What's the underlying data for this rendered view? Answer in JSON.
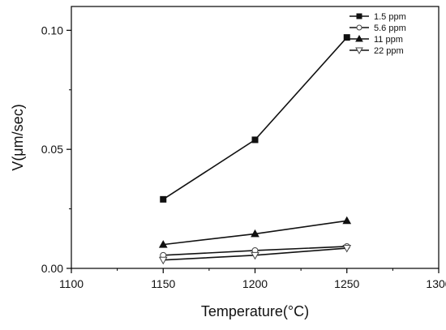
{
  "chart_data": {
    "type": "line",
    "xlabel": "Temperature(°C)",
    "ylabel": "V(μm/sec)",
    "xlim": [
      1100,
      1300
    ],
    "ylim": [
      0,
      0.11
    ],
    "x_ticks": [
      "1100",
      "1150",
      "1200",
      "1250",
      "1300"
    ],
    "y_ticks": [
      "0.00",
      "0.05",
      "0.10"
    ],
    "x_tick_values": [
      1100,
      1150,
      1200,
      1250,
      1300
    ],
    "y_tick_values": [
      0,
      0.05,
      0.1
    ],
    "grid": false,
    "legend_position": "top-right",
    "x": [
      1150,
      1200,
      1250
    ],
    "series": [
      {
        "name": "1.5 ppm",
        "marker": "square-filled",
        "values": [
          0.029,
          0.054,
          0.097
        ]
      },
      {
        "name": "5.6 ppm",
        "marker": "circle-open",
        "values": [
          0.0055,
          0.0075,
          0.0092
        ]
      },
      {
        "name": "11 ppm",
        "marker": "triangle-up-filled",
        "values": [
          0.01,
          0.0145,
          0.02
        ]
      },
      {
        "name": "22 ppm",
        "marker": "triangle-down-open",
        "values": [
          0.0035,
          0.0055,
          0.0085
        ]
      }
    ],
    "colors": {
      "line": "#111111",
      "axis": "#000000"
    }
  }
}
